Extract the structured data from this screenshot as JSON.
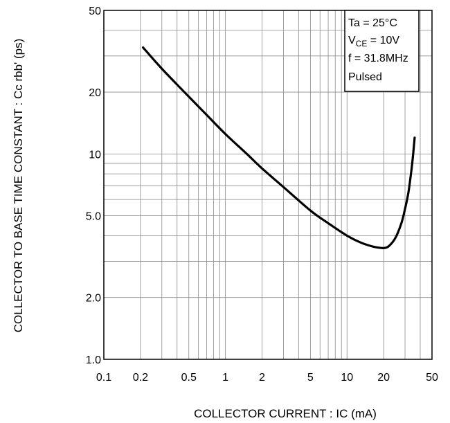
{
  "chart_data": {
    "type": "line",
    "xscale": "log",
    "yscale": "log",
    "xlim": [
      0.1,
      50
    ],
    "ylim": [
      1.0,
      50
    ],
    "grid": true,
    "xlabel": "COLLECTOR  CURRENT : IC (mA)",
    "ylabel": "COLLECTOR TO BASE TIME CONSTANT : Cc  rbb' (ps)",
    "x_ticks": [
      0.1,
      0.2,
      0.5,
      1,
      2,
      5,
      10,
      20,
      50
    ],
    "x_tick_labels": [
      "0.1",
      "0.2",
      "0.5",
      "1",
      "2",
      "5",
      "10",
      "20",
      "50"
    ],
    "y_ticks": [
      1.0,
      2.0,
      5.0,
      10,
      20,
      50
    ],
    "y_tick_labels": [
      "1.0",
      "2.0",
      "5.0",
      "10",
      "20",
      "50"
    ],
    "legend_placement": "top-right",
    "conditions": {
      "ta": "Ta = 25°C",
      "vce_main": "V",
      "vce_sub": "CE",
      "vce_val": " = 10V",
      "freq": "f = 31.8MHz",
      "mode": "Pulsed"
    },
    "series": [
      {
        "x": [
          0.21,
          0.3,
          0.5,
          0.7,
          1.0,
          1.5,
          2.0,
          3.0,
          5.0,
          7.0,
          10,
          13,
          16,
          18,
          20,
          22,
          25,
          28,
          30,
          32,
          34,
          35,
          36
        ],
        "y": [
          33,
          26,
          19,
          15.5,
          12.5,
          10,
          8.5,
          6.9,
          5.3,
          4.6,
          4.0,
          3.7,
          3.55,
          3.5,
          3.48,
          3.55,
          3.9,
          4.6,
          5.4,
          6.5,
          8.5,
          10,
          12
        ]
      }
    ]
  }
}
